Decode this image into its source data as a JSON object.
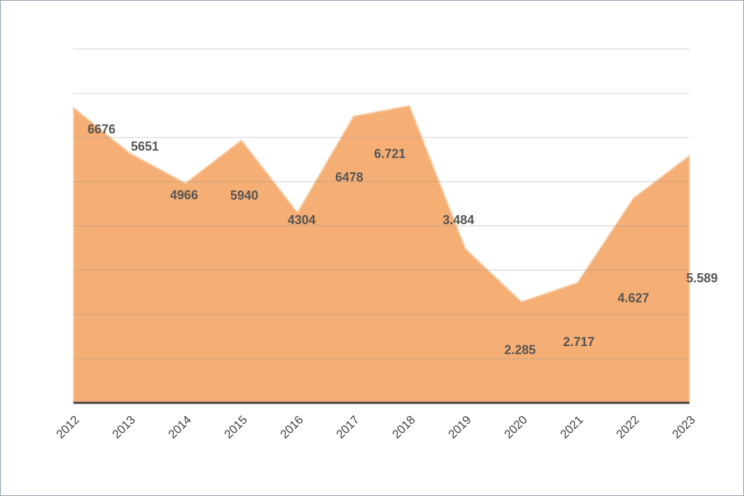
{
  "chart_data": {
    "type": "area",
    "categories": [
      "2012",
      "2013",
      "2014",
      "2015",
      "2016",
      "2017",
      "2018",
      "2019",
      "2020",
      "2021",
      "2022",
      "2023"
    ],
    "values": [
      6676,
      5651,
      4966,
      5940,
      4304,
      6478,
      6721,
      3484,
      2285,
      2717,
      4627,
      5589
    ],
    "value_labels": [
      "6676",
      "5651",
      "4966",
      "5940",
      "4304",
      "6478",
      "6.721",
      "3.484",
      "2.285",
      "2.717",
      "4.627",
      "5.589"
    ],
    "color": "#f5ae73",
    "ylim": [
      0,
      8000
    ],
    "yticks": [
      0,
      1000,
      2000,
      3000,
      4000,
      5000,
      6000,
      7000,
      8000
    ],
    "grid": true
  }
}
